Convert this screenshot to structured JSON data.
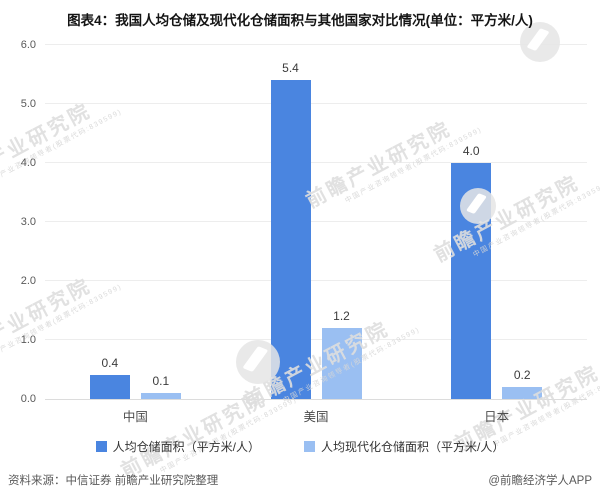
{
  "title": "图表4：我国人均仓储及现代化仓储面积与其他国家对比情况(单位：平方米/人)",
  "chart_data": {
    "type": "bar",
    "categories": [
      "中国",
      "美国",
      "日本"
    ],
    "series": [
      {
        "name": "人均仓储面积（平方米/人）",
        "color": "#4a85e0",
        "values": [
          0.4,
          5.4,
          4.0
        ]
      },
      {
        "name": "人均现代化仓储面积（平方米/人）",
        "color": "#9abff2",
        "values": [
          0.1,
          1.2,
          0.2
        ]
      }
    ],
    "ylim": [
      0,
      6
    ],
    "ytick_labels": [
      "6.0",
      "5.0",
      "4.0",
      "3.0",
      "2.0",
      "1.0",
      "0.0"
    ],
    "grid": "horizontal",
    "legend_position": "bottom",
    "value_labels": true,
    "value_label_format": "0.0"
  },
  "watermark": {
    "text": "前瞻产业研究院",
    "subtext": "中国产业咨询领导者(股票代码:839599)"
  },
  "footer": {
    "source": "资料来源：中信证券 前瞻产业研究院整理",
    "credit": "@前瞻经济学人APP"
  }
}
